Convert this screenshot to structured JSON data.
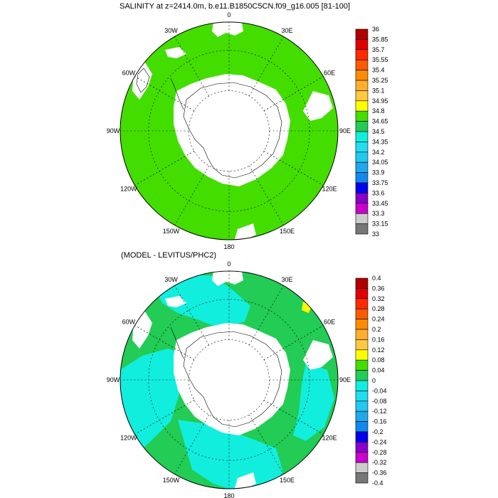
{
  "map1": {
    "title": "SALINITY at z=2414.0m, b.e11.B1850C5CN.f09_g16.005 [81-100]",
    "lon_labels": [
      "0",
      "30E",
      "60E",
      "90E",
      "120E",
      "150E",
      "180",
      "150W",
      "120W",
      "90W",
      "60W",
      "30W"
    ],
    "colorbar": {
      "labels": [
        "36",
        "35.85",
        "35.7",
        "35.55",
        "35.4",
        "35.25",
        "35.1",
        "34.95",
        "34.8",
        "34.65",
        "34.5",
        "34.35",
        "34.2",
        "34.05",
        "33.9",
        "33.75",
        "33.6",
        "33.45",
        "33.3",
        "33.15",
        "33"
      ],
      "colors": [
        "#b00000",
        "#e00000",
        "#ff2a00",
        "#ff5a00",
        "#ff8c00",
        "#ffae2e",
        "#ffc840",
        "#ffff00",
        "#44dd00",
        "#22cc55",
        "#11eedd",
        "#22ddee",
        "#22c8f0",
        "#1fa8ee",
        "#1188ee",
        "#0000ee",
        "#8800cc",
        "#cc00cc",
        "#cccccc",
        "#777777"
      ]
    },
    "field_color": "#44dd00"
  },
  "map2": {
    "title": "(MODEL - LEVITUS/PHC2)",
    "lon_labels": [
      "0",
      "30E",
      "60E",
      "90E",
      "120E",
      "150E",
      "180",
      "150W",
      "120W",
      "90W",
      "60W",
      "30W"
    ],
    "colorbar": {
      "labels": [
        "0.4",
        "0.36",
        "0.32",
        "0.28",
        "0.24",
        "0.2",
        "0.16",
        "0.12",
        "0.08",
        "0.04",
        "0",
        "-0.04",
        "-0.08",
        "-0.12",
        "-0.16",
        "-0.2",
        "-0.24",
        "-0.28",
        "-0.32",
        "-0.36",
        "-0.4"
      ],
      "colors": [
        "#b00000",
        "#e00000",
        "#ff2a00",
        "#ff5a00",
        "#ff8c00",
        "#ffae2e",
        "#ffc840",
        "#ffff00",
        "#44dd00",
        "#22cc55",
        "#11eedd",
        "#22ddee",
        "#22c8f0",
        "#1fa8ee",
        "#1188ee",
        "#0000ee",
        "#8800cc",
        "#cc00cc",
        "#cccccc",
        "#777777"
      ]
    },
    "field_colors": [
      "#22cc55",
      "#11eedd"
    ]
  }
}
